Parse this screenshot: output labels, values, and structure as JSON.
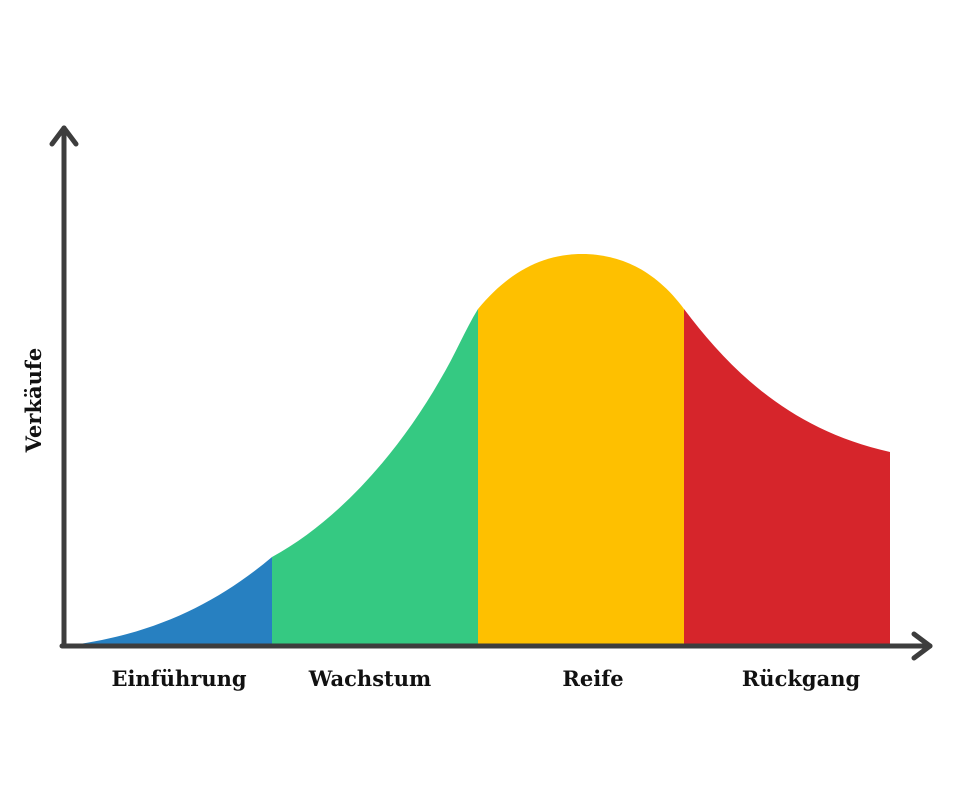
{
  "y_axis_label": "Verkäufe",
  "stages": [
    {
      "label": "Einführung",
      "color": "#2780c1"
    },
    {
      "label": "Wachstum",
      "color": "#35c982"
    },
    {
      "label": "Reife",
      "color": "#fec000"
    },
    {
      "label": "Rückgang",
      "color": "#d6252b"
    }
  ],
  "axis_color": "#3d3d3d"
}
